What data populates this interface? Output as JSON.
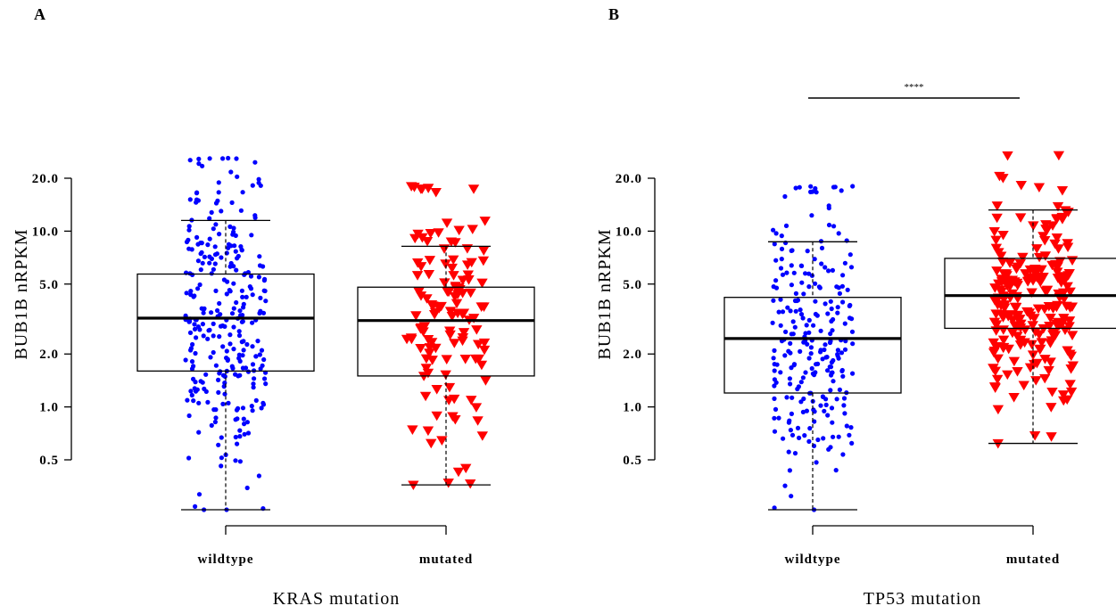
{
  "chart_data": [
    {
      "panel": "A",
      "type": "box",
      "scale": "log",
      "ylabel": "BUB1B nRPKM",
      "xlabel": "KRAS mutation",
      "yticks": [
        0.5,
        1.0,
        2.0,
        5.0,
        10.0,
        20.0
      ],
      "ytick_labels": [
        "0.5",
        "1.0",
        "2.0",
        "5.0",
        "10.0",
        "20.0"
      ],
      "ylim": [
        0.25,
        30
      ],
      "significance": "",
      "groups": [
        {
          "label": "wildtype",
          "color": "#0000ff",
          "marker": "circle",
          "n": 300,
          "seed": 11,
          "stats": {
            "whisker_low": 0.26,
            "q1": 1.6,
            "median": 3.2,
            "q3": 5.7,
            "whisker_high": 11.5
          },
          "range": [
            0.26,
            26
          ]
        },
        {
          "label": "mutated",
          "color": "#ff0000",
          "marker": "triangle-down",
          "n": 125,
          "seed": 23,
          "stats": {
            "whisker_low": 0.36,
            "q1": 1.5,
            "median": 3.1,
            "q3": 4.8,
            "whisker_high": 8.2
          },
          "range": [
            0.36,
            18
          ]
        }
      ]
    },
    {
      "panel": "B",
      "type": "box",
      "scale": "log",
      "ylabel": "BUB1B nRPKM",
      "xlabel": "TP53 mutation",
      "yticks": [
        0.5,
        1.0,
        2.0,
        5.0,
        10.0,
        20.0
      ],
      "ytick_labels": [
        "0.5",
        "1.0",
        "2.0",
        "5.0",
        "10.0",
        "20.0"
      ],
      "ylim": [
        0.25,
        30
      ],
      "significance": "****",
      "groups": [
        {
          "label": "wildtype",
          "color": "#0000ff",
          "marker": "circle",
          "n": 250,
          "seed": 37,
          "stats": {
            "whisker_low": 0.26,
            "q1": 1.2,
            "median": 2.45,
            "q3": 4.2,
            "whisker_high": 8.7
          },
          "range": [
            0.26,
            18
          ]
        },
        {
          "label": "mutated",
          "color": "#ff0000",
          "marker": "triangle-down",
          "n": 220,
          "seed": 53,
          "stats": {
            "whisker_low": 0.62,
            "q1": 2.8,
            "median": 4.3,
            "q3": 7.0,
            "whisker_high": 13.2
          },
          "range": [
            0.62,
            27
          ]
        }
      ]
    }
  ]
}
